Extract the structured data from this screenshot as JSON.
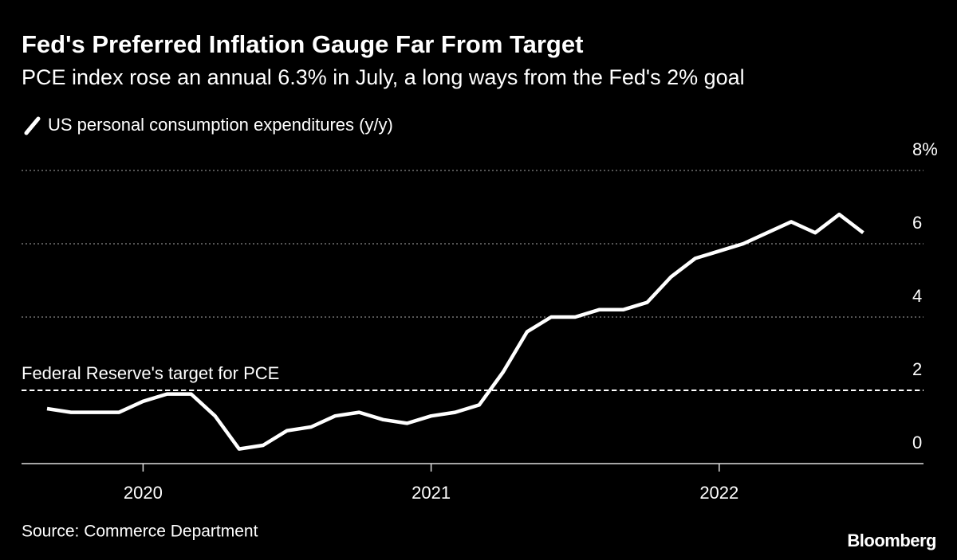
{
  "chart_data": {
    "type": "line",
    "title": "Fed's Preferred Inflation Gauge Far From Target",
    "subtitle": "PCE index rose an annual 6.3% in July, a long ways from the Fed's 2% goal",
    "source": "Source: Commerce Department",
    "brand": "Bloomberg",
    "categories": [
      null,
      null,
      null,
      null,
      "2020",
      null,
      null,
      null,
      null,
      null,
      null,
      null,
      null,
      null,
      null,
      null,
      "2021",
      null,
      null,
      null,
      null,
      null,
      null,
      null,
      null,
      null,
      null,
      null,
      "2022",
      null,
      null,
      null,
      null,
      null,
      null
    ],
    "series": [
      {
        "name": "US personal consumption expenditures (y/y)",
        "color": "#ffffff",
        "values": [
          1.5,
          1.4,
          1.4,
          1.4,
          1.7,
          1.9,
          1.9,
          1.3,
          0.4,
          0.5,
          0.9,
          1.0,
          1.3,
          1.4,
          1.2,
          1.1,
          1.3,
          1.4,
          1.6,
          2.5,
          3.6,
          4.0,
          4.0,
          4.2,
          4.2,
          4.4,
          5.1,
          5.6,
          5.8,
          6.0,
          6.3,
          6.6,
          6.3,
          6.8,
          6.3
        ]
      }
    ],
    "ylim": [
      0,
      8
    ],
    "yticks": [
      0,
      2,
      4,
      6,
      {
        "value": 8,
        "label": "8%"
      }
    ],
    "grid": true,
    "reference_line": {
      "value": 2,
      "label": "Federal Reserve's target for PCE"
    }
  }
}
